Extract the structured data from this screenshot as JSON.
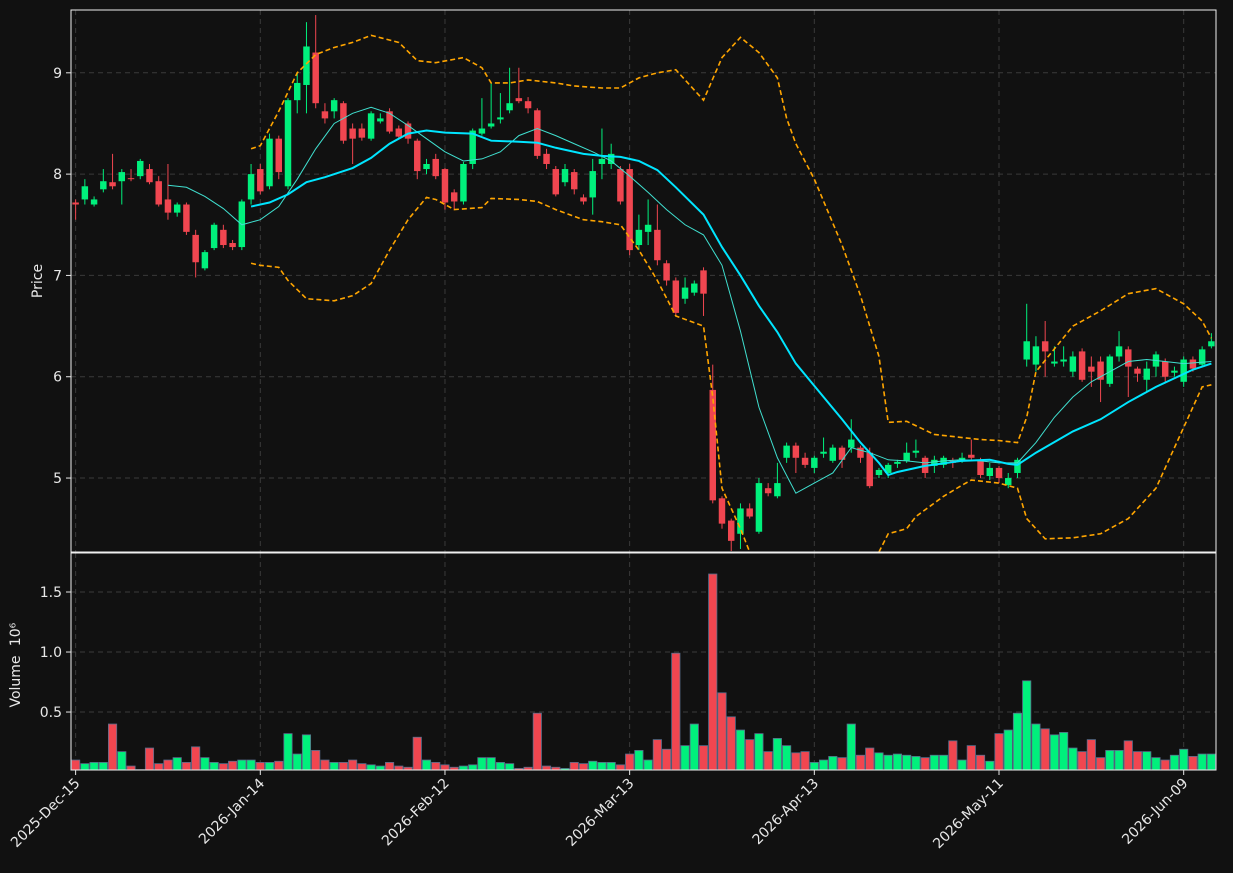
{
  "chart_data": [
    {
      "type": "candlestick",
      "ylabel": "Price",
      "up_color": "#00f07c",
      "down_color": "#f04650",
      "ylim": [
        4.27,
        9.62
      ],
      "yticks": [
        5,
        6,
        7,
        8,
        9
      ],
      "grid": true,
      "open": [
        7.72,
        7.75,
        7.7,
        7.85,
        7.92,
        7.93,
        7.96,
        7.98,
        8.05,
        7.93,
        7.75,
        7.62,
        7.7,
        7.4,
        7.07,
        7.27,
        7.45,
        7.32,
        7.28,
        7.75,
        8.05,
        7.88,
        8.35,
        7.88,
        8.73,
        8.88,
        9.2,
        8.62,
        8.62,
        8.7,
        8.45,
        8.45,
        8.35,
        8.52,
        8.62,
        8.45,
        8.5,
        8.33,
        8.05,
        8.15,
        8.05,
        7.82,
        7.73,
        8.1,
        8.4,
        8.47,
        8.54,
        8.63,
        8.75,
        8.72,
        8.63,
        8.2,
        8.05,
        7.92,
        8.02,
        7.77,
        7.77,
        8.1,
        8.1,
        8.05,
        8.05,
        7.3,
        7.43,
        7.45,
        7.12,
        6.95,
        6.77,
        6.83,
        7.05,
        5.87,
        4.8,
        4.58,
        4.45,
        4.7,
        4.47,
        4.9,
        4.82,
        5.2,
        5.32,
        5.2,
        5.1,
        5.24,
        5.17,
        5.3,
        5.3,
        5.3,
        5.25,
        5.03,
        5.05,
        5.14,
        5.17,
        5.25,
        5.2,
        5.12,
        5.13,
        5.17,
        5.18,
        5.23,
        5.18,
        5.02,
        5.1,
        4.93,
        5.05,
        6.17,
        6.12,
        6.35,
        6.13,
        6.15,
        6.05,
        6.25,
        6.1,
        6.15,
        5.93,
        6.2,
        6.27,
        6.08,
        5.97,
        6.1,
        6.15,
        6.04,
        5.95,
        6.17,
        6.12,
        6.3
      ],
      "high": [
        7.75,
        7.95,
        7.78,
        8.05,
        8.2,
        8.05,
        8.05,
        8.15,
        8.1,
        7.98,
        8.1,
        7.72,
        7.72,
        7.45,
        7.25,
        7.52,
        7.5,
        7.35,
        7.75,
        8.1,
        8.1,
        8.4,
        8.38,
        8.75,
        9.0,
        9.5,
        9.57,
        8.7,
        8.75,
        8.72,
        8.5,
        8.5,
        8.62,
        8.6,
        8.65,
        8.48,
        8.52,
        8.35,
        8.15,
        8.2,
        8.06,
        7.85,
        8.12,
        8.45,
        8.75,
        8.9,
        8.8,
        9.05,
        9.05,
        8.76,
        8.65,
        8.25,
        8.08,
        8.1,
        8.05,
        7.8,
        8.15,
        8.45,
        8.3,
        8.08,
        8.1,
        7.6,
        7.75,
        7.7,
        7.15,
        6.98,
        6.98,
        6.95,
        7.08,
        6.12,
        4.82,
        4.6,
        4.75,
        4.75,
        5.0,
        4.95,
        5.15,
        5.35,
        5.35,
        5.25,
        5.22,
        5.4,
        5.33,
        5.32,
        5.58,
        5.32,
        5.3,
        5.1,
        5.15,
        5.18,
        5.35,
        5.38,
        5.22,
        5.22,
        5.22,
        5.2,
        5.25,
        5.38,
        5.2,
        5.15,
        5.12,
        5.05,
        5.2,
        6.72,
        6.4,
        6.55,
        6.3,
        6.3,
        6.25,
        6.28,
        6.2,
        6.2,
        6.22,
        6.45,
        6.3,
        6.1,
        6.15,
        6.25,
        6.18,
        6.1,
        6.2,
        6.2,
        6.3,
        6.43
      ],
      "low": [
        7.55,
        7.7,
        7.68,
        7.82,
        7.85,
        7.7,
        7.93,
        7.95,
        7.9,
        7.68,
        7.55,
        7.58,
        7.4,
        6.98,
        7.05,
        7.25,
        7.27,
        7.25,
        7.25,
        7.7,
        7.8,
        7.85,
        7.95,
        7.85,
        8.6,
        8.6,
        8.65,
        8.5,
        8.55,
        8.3,
        8.1,
        8.33,
        8.33,
        8.5,
        8.4,
        8.35,
        8.3,
        7.95,
        8.0,
        7.95,
        7.65,
        7.65,
        7.7,
        8.05,
        8.38,
        8.45,
        8.5,
        8.6,
        8.7,
        8.6,
        8.15,
        8.05,
        7.78,
        7.88,
        7.8,
        7.7,
        7.6,
        7.95,
        8.05,
        7.7,
        7.2,
        7.25,
        7.3,
        7.1,
        6.9,
        6.6,
        6.72,
        6.8,
        6.6,
        4.75,
        4.5,
        4.28,
        4.3,
        4.6,
        4.45,
        4.82,
        4.8,
        5.15,
        5.05,
        5.1,
        5.05,
        5.2,
        5.15,
        5.1,
        5.25,
        5.15,
        4.9,
        5.0,
        5.0,
        5.1,
        5.15,
        5.2,
        5.0,
        5.05,
        5.1,
        5.1,
        5.15,
        5.18,
        5.0,
        4.98,
        4.95,
        4.9,
        5.0,
        6.1,
        6.05,
        6.0,
        6.1,
        6.1,
        6.0,
        5.95,
        5.9,
        5.75,
        5.9,
        6.15,
        5.8,
        5.95,
        5.85,
        6.0,
        5.95,
        6.0,
        5.9,
        6.05,
        6.1,
        6.28
      ],
      "close": [
        7.7,
        7.88,
        7.75,
        7.93,
        7.88,
        8.02,
        7.95,
        8.13,
        7.92,
        7.7,
        7.62,
        7.7,
        7.43,
        7.13,
        7.23,
        7.5,
        7.3,
        7.28,
        7.73,
        8.0,
        7.83,
        8.35,
        8.02,
        8.73,
        8.9,
        9.26,
        8.7,
        8.55,
        8.73,
        8.33,
        8.35,
        8.36,
        8.6,
        8.55,
        8.42,
        8.37,
        8.35,
        8.03,
        8.1,
        7.98,
        7.72,
        7.73,
        8.1,
        8.43,
        8.45,
        8.5,
        8.56,
        8.7,
        8.72,
        8.65,
        8.18,
        8.1,
        7.8,
        8.05,
        7.85,
        7.73,
        8.03,
        8.15,
        8.2,
        7.73,
        7.25,
        7.45,
        7.5,
        7.15,
        6.95,
        6.63,
        6.88,
        6.92,
        6.82,
        4.78,
        4.55,
        4.38,
        4.7,
        4.62,
        4.95,
        4.85,
        4.95,
        5.32,
        5.2,
        5.13,
        5.2,
        5.26,
        5.3,
        5.18,
        5.38,
        5.2,
        4.92,
        5.08,
        5.13,
        5.16,
        5.25,
        5.27,
        5.05,
        5.18,
        5.2,
        5.15,
        5.2,
        5.2,
        5.03,
        5.1,
        5.0,
        5.0,
        5.18,
        6.35,
        6.3,
        6.25,
        6.15,
        6.17,
        6.2,
        5.97,
        6.05,
        5.97,
        6.2,
        6.3,
        6.1,
        6.03,
        6.08,
        6.22,
        6.0,
        6.06,
        6.17,
        6.08,
        6.27,
        6.35
      ],
      "overlays": [
        {
          "color": "#40e0d0",
          "linewidth": 1,
          "linestyle": "solid",
          "x": [
            10,
            12,
            14,
            16,
            18,
            20,
            22,
            24,
            26,
            28,
            30,
            32,
            34,
            36,
            38,
            40,
            42,
            44,
            46,
            48,
            50,
            52,
            54,
            56,
            58,
            60,
            62,
            64,
            66,
            68,
            70,
            72,
            74,
            76,
            78,
            80,
            82,
            84,
            86,
            88,
            90,
            92,
            94,
            96,
            98,
            100,
            102,
            104,
            106,
            108,
            110,
            112,
            114,
            116,
            118,
            120,
            123
          ],
          "values": [
            7.89,
            7.87,
            7.78,
            7.66,
            7.5,
            7.55,
            7.68,
            7.95,
            8.25,
            8.5,
            8.6,
            8.66,
            8.6,
            8.48,
            8.35,
            8.22,
            8.13,
            8.15,
            8.22,
            8.38,
            8.45,
            8.38,
            8.3,
            8.22,
            8.13,
            7.98,
            7.82,
            7.65,
            7.5,
            7.4,
            7.1,
            6.45,
            5.7,
            5.2,
            4.85,
            4.95,
            5.05,
            5.3,
            5.25,
            5.18,
            5.17,
            5.15,
            5.17,
            5.18,
            5.17,
            5.15,
            5.15,
            5.35,
            5.6,
            5.8,
            5.95,
            6.05,
            6.15,
            6.17,
            6.15,
            6.13,
            6.15
          ]
        },
        {
          "color": "#00e5ff",
          "linewidth": 2,
          "linestyle": "solid",
          "x": [
            19,
            21,
            23,
            25,
            27,
            30,
            32,
            34,
            36,
            38,
            40,
            43,
            45,
            48,
            50,
            52,
            55,
            57,
            59,
            61,
            63,
            65,
            68,
            70,
            72,
            74,
            76,
            78,
            81,
            83,
            85,
            87,
            88,
            89,
            92,
            96,
            99,
            101,
            102,
            104,
            108,
            111,
            114,
            117,
            121,
            123
          ],
          "values": [
            7.68,
            7.72,
            7.8,
            7.92,
            7.97,
            8.06,
            8.16,
            8.3,
            8.4,
            8.43,
            8.41,
            8.4,
            8.33,
            8.32,
            8.31,
            8.26,
            8.2,
            8.18,
            8.17,
            8.13,
            8.04,
            7.87,
            7.6,
            7.28,
            7.0,
            6.7,
            6.44,
            6.13,
            5.8,
            5.58,
            5.35,
            5.15,
            5.03,
            5.06,
            5.12,
            5.17,
            5.18,
            5.14,
            5.13,
            5.25,
            5.46,
            5.58,
            5.75,
            5.9,
            6.07,
            6.13
          ]
        },
        {
          "color": "#ffa500",
          "linewidth": 1.6,
          "linestyle": "dashed",
          "x": [
            19,
            20,
            22,
            24,
            26,
            28,
            30,
            32,
            35,
            37,
            39,
            42,
            44,
            45,
            47,
            49,
            52,
            54,
            57,
            59,
            61,
            63,
            65,
            68,
            70,
            72,
            74,
            76,
            77,
            78,
            80,
            83,
            85,
            87,
            88,
            90,
            93,
            96,
            98,
            100,
            102,
            103,
            104,
            108,
            111,
            114,
            117,
            120,
            122,
            123
          ],
          "values": [
            8.25,
            8.28,
            8.62,
            9.0,
            9.18,
            9.25,
            9.3,
            9.37,
            9.3,
            9.12,
            9.1,
            9.15,
            9.05,
            8.9,
            8.9,
            8.93,
            8.9,
            8.87,
            8.85,
            8.85,
            8.95,
            9.0,
            9.03,
            8.73,
            9.15,
            9.35,
            9.2,
            8.95,
            8.55,
            8.3,
            7.95,
            7.3,
            6.8,
            6.2,
            5.55,
            5.56,
            5.43,
            5.4,
            5.38,
            5.37,
            5.35,
            5.6,
            6.05,
            6.5,
            6.65,
            6.82,
            6.87,
            6.72,
            6.55,
            6.38
          ]
        },
        {
          "color": "#ffa500",
          "linewidth": 1.6,
          "linestyle": "dashed",
          "x": [
            19,
            20,
            22,
            23,
            25,
            28,
            30,
            32,
            34,
            36,
            38,
            39,
            41,
            44,
            45,
            48,
            50,
            52,
            55,
            57,
            59,
            61,
            63,
            65,
            68,
            69,
            70,
            72,
            73,
            80,
            87,
            88,
            90,
            91,
            94,
            96,
            97,
            100,
            102,
            103,
            105,
            108,
            111,
            114,
            117,
            119,
            122,
            123
          ],
          "values": [
            7.12,
            7.1,
            7.08,
            6.95,
            6.77,
            6.75,
            6.8,
            6.92,
            7.25,
            7.55,
            7.77,
            7.75,
            7.65,
            7.67,
            7.76,
            7.75,
            7.73,
            7.65,
            7.55,
            7.53,
            7.5,
            7.25,
            6.95,
            6.6,
            6.5,
            5.8,
            4.9,
            4.5,
            4.27,
            null,
            4.27,
            4.45,
            4.5,
            4.62,
            4.82,
            4.93,
            4.98,
            4.95,
            4.9,
            4.6,
            4.4,
            4.41,
            4.45,
            4.6,
            4.9,
            5.3,
            5.9,
            5.92
          ]
        }
      ]
    },
    {
      "type": "bar",
      "ylabel": "Volume",
      "ylabel_scale": "10⁶",
      "ylim": [
        0.017,
        1.825
      ],
      "yticks": [
        0.5,
        {
          "value": 1,
          "label": "1.0"
        },
        1.5
      ],
      "grid": true,
      "categories": [
        "2025-Dec-15",
        null,
        null,
        null,
        null,
        null,
        null,
        null,
        null,
        null,
        null,
        null,
        null,
        null,
        null,
        null,
        null,
        null,
        null,
        null,
        "2026-Jan-14",
        null,
        null,
        null,
        null,
        null,
        null,
        null,
        null,
        null,
        null,
        null,
        null,
        null,
        null,
        null,
        null,
        null,
        null,
        null,
        "2026-Feb-12",
        null,
        null,
        null,
        null,
        null,
        null,
        null,
        null,
        null,
        null,
        null,
        null,
        null,
        null,
        null,
        null,
        null,
        null,
        null,
        "2026-Mar-13",
        null,
        null,
        null,
        null,
        null,
        null,
        null,
        null,
        null,
        null,
        null,
        null,
        null,
        null,
        null,
        null,
        null,
        null,
        null,
        "2026-Apr-13",
        null,
        null,
        null,
        null,
        null,
        null,
        null,
        null,
        null,
        null,
        null,
        null,
        null,
        null,
        null,
        null,
        null,
        null,
        null,
        "2026-May-11",
        null,
        null,
        null,
        null,
        null,
        null,
        null,
        null,
        null,
        null,
        null,
        null,
        null,
        null,
        null,
        null,
        null,
        null,
        null,
        "2026-Jun-09",
        null,
        null,
        null
      ],
      "values": [
        0.1,
        0.07,
        0.08,
        0.08,
        0.4,
        0.17,
        0.05,
        0.02,
        0.2,
        0.07,
        0.1,
        0.12,
        0.08,
        0.21,
        0.12,
        0.08,
        0.07,
        0.09,
        0.1,
        0.1,
        0.08,
        0.08,
        0.09,
        0.32,
        0.15,
        0.31,
        0.18,
        0.1,
        0.08,
        0.08,
        0.1,
        0.07,
        0.06,
        0.05,
        0.08,
        0.05,
        0.04,
        0.29,
        0.1,
        0.08,
        0.06,
        0.04,
        0.05,
        0.06,
        0.12,
        0.12,
        0.08,
        0.07,
        0.03,
        0.04,
        0.49,
        0.05,
        0.04,
        0.03,
        0.08,
        0.07,
        0.09,
        0.08,
        0.08,
        0.06,
        0.15,
        0.18,
        0.1,
        0.27,
        0.19,
        0.99,
        0.22,
        0.4,
        0.22,
        1.65,
        0.66,
        0.46,
        0.35,
        0.27,
        0.32,
        0.17,
        0.28,
        0.22,
        0.16,
        0.17,
        0.08,
        0.1,
        0.13,
        0.12,
        0.4,
        0.14,
        0.2,
        0.16,
        0.14,
        0.15,
        0.14,
        0.13,
        0.12,
        0.14,
        0.14,
        0.26,
        0.1,
        0.22,
        0.14,
        0.09,
        0.32,
        0.35,
        0.49,
        0.76,
        0.4,
        0.36,
        0.31,
        0.33,
        0.2,
        0.17,
        0.27,
        0.12,
        0.18,
        0.18,
        0.26,
        0.17,
        0.17,
        0.12,
        0.1,
        0.14,
        0.19,
        0.13,
        0.15,
        0.15
      ]
    }
  ]
}
